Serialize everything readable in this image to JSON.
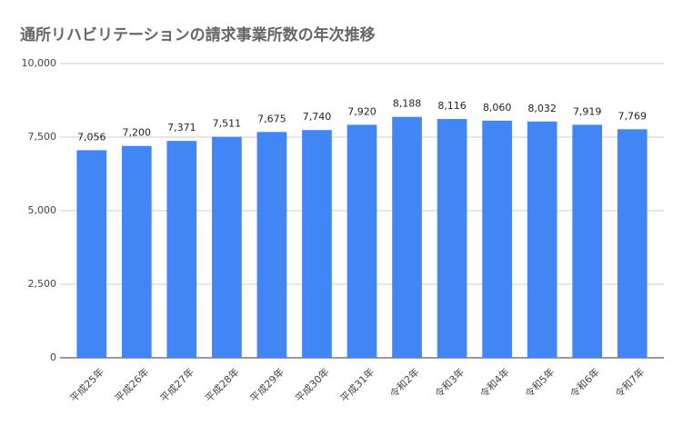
{
  "chart_data": {
    "type": "bar",
    "title": "通所リハビリテーションの請求事業所数の年次推移",
    "categories": [
      "平成25年",
      "平成26年",
      "平成27年",
      "平成28年",
      "平成29年",
      "平成30年",
      "平成31年",
      "令和2年",
      "令和3年",
      "令和4年",
      "令和5年",
      "令和6年",
      "令和7年"
    ],
    "values": [
      7056,
      7200,
      7371,
      7511,
      7675,
      7740,
      7920,
      8188,
      8116,
      8060,
      8032,
      7919,
      7769
    ],
    "value_labels": [
      "7,056",
      "7,200",
      "7,371",
      "7,511",
      "7,675",
      "7,740",
      "7,920",
      "8,188",
      "8,116",
      "8,060",
      "8,032",
      "7,919",
      "7,769"
    ],
    "color": "#4285f4",
    "ylim": [
      0,
      10000
    ],
    "yticks": [
      0,
      {
        "value": 2500,
        "label": "2,500"
      },
      {
        "value": 5000,
        "label": "5,000"
      },
      {
        "value": 7500,
        "label": "7,500"
      },
      {
        "value": 10000,
        "label": "10,000"
      }
    ],
    "grid": true
  }
}
